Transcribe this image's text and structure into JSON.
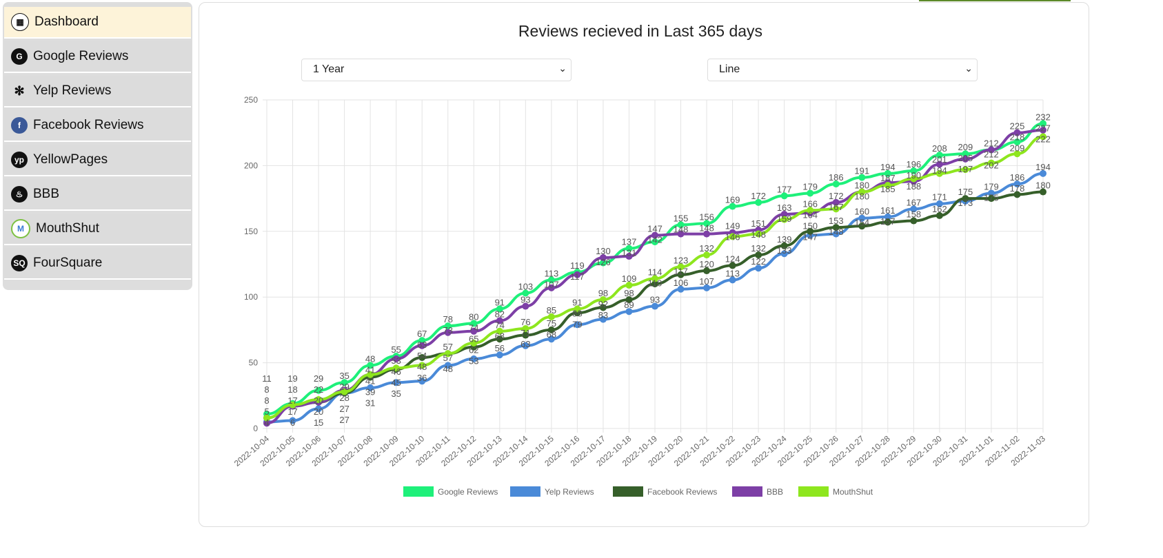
{
  "sidebar": {
    "items": [
      {
        "label": "Dashboard",
        "icon": "dashboard-icon",
        "glyph": "▦"
      },
      {
        "label": "Google Reviews",
        "icon": "google-icon",
        "glyph": "G"
      },
      {
        "label": "Yelp Reviews",
        "icon": "yelp-icon",
        "glyph": "✻"
      },
      {
        "label": "Facebook Reviews",
        "icon": "facebook-icon",
        "glyph": "f"
      },
      {
        "label": "YellowPages",
        "icon": "yellowpages-icon",
        "glyph": "yp"
      },
      {
        "label": "BBB",
        "icon": "bbb-icon",
        "glyph": "♨"
      },
      {
        "label": "MouthShut",
        "icon": "mouthshut-icon",
        "glyph": "M"
      },
      {
        "label": "FourSquare",
        "icon": "foursquare-icon",
        "glyph": "SQ"
      }
    ]
  },
  "main": {
    "title": "Reviews recieved in Last 365 days",
    "period_select": "1 Year",
    "type_select": "Line"
  },
  "chart_data": {
    "type": "line",
    "title": "Reviews recieved in Last 365 days",
    "ylim": [
      0,
      250
    ],
    "yticks": [
      0,
      50,
      100,
      150,
      200,
      250
    ],
    "grid": true,
    "legend": "bottom",
    "x": [
      "2022-10-04",
      "2022-10-05",
      "2022-10-06",
      "2022-10-07",
      "2022-10-08",
      "2022-10-09",
      "2022-10-10",
      "2022-10-11",
      "2022-10-12",
      "2022-10-13",
      "2022-10-14",
      "2022-10-15",
      "2022-10-16",
      "2022-10-17",
      "2022-10-18",
      "2022-10-19",
      "2022-10-20",
      "2022-10-21",
      "2022-10-22",
      "2022-10-23",
      "2022-10-24",
      "2022-10-25",
      "2022-10-26",
      "2022-10-27",
      "2022-10-28",
      "2022-10-29",
      "2022-10-30",
      "2022-10-31",
      "2022-11-01",
      "2022-11-02",
      "2022-11-03"
    ],
    "series": [
      {
        "name": "Google Reviews",
        "color": "#1ef07a",
        "values": [
          11,
          19,
          29,
          35,
          48,
          55,
          67,
          78,
          80,
          91,
          103,
          113,
          119,
          126,
          137,
          142,
          155,
          156,
          169,
          172,
          177,
          179,
          186,
          191,
          194,
          196,
          208,
          209,
          212,
          218,
          232
        ]
      },
      {
        "name": "Yelp Reviews",
        "color": "#4a8ad8",
        "values": [
          5,
          6,
          15,
          27,
          31,
          35,
          36,
          48,
          53,
          56,
          63,
          68,
          79,
          83,
          89,
          93,
          106,
          107,
          113,
          122,
          133,
          147,
          148,
          160,
          161,
          167,
          171,
          173,
          179,
          186,
          194
        ]
      },
      {
        "name": "Facebook Reviews",
        "color": "#365f2a",
        "values": [
          8,
          17,
          20,
          27,
          39,
          45,
          54,
          57,
          62,
          68,
          71,
          75,
          88,
          92,
          98,
          110,
          117,
          120,
          124,
          132,
          139,
          150,
          153,
          154,
          157,
          158,
          162,
          175,
          175,
          178,
          180
        ]
      },
      {
        "name": "BBB",
        "color": "#7d3fa6",
        "values": [
          4,
          17,
          20,
          29,
          41,
          53,
          63,
          73,
          74,
          82,
          93,
          107,
          117,
          130,
          131,
          147,
          148,
          148,
          149,
          151,
          163,
          164,
          172,
          180,
          187,
          188,
          201,
          205,
          212,
          225,
          227
        ]
      },
      {
        "name": "MouthShut",
        "color": "#8ee61e",
        "values": [
          8,
          18,
          22,
          28,
          41,
          46,
          48,
          57,
          65,
          74,
          76,
          85,
          91,
          98,
          109,
          114,
          123,
          132,
          146,
          148,
          159,
          166,
          167,
          180,
          185,
          190,
          194,
          197,
          202,
          209,
          222
        ]
      }
    ]
  }
}
